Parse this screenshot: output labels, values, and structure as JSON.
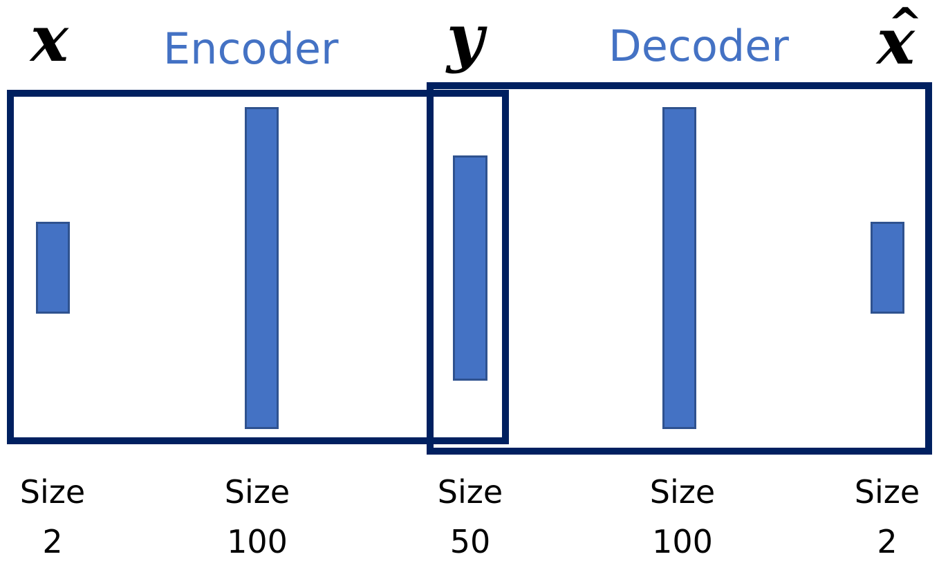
{
  "labels": {
    "input": "x",
    "latent": "y",
    "output": "x",
    "output_hat": "^",
    "encoder": "Encoder",
    "decoder": "Decoder"
  },
  "layers": [
    {
      "size_word": "Size",
      "size_value": "2"
    },
    {
      "size_word": "Size",
      "size_value": "100"
    },
    {
      "size_word": "Size",
      "size_value": "50"
    },
    {
      "size_word": "Size",
      "size_value": "100"
    },
    {
      "size_word": "Size",
      "size_value": "2"
    }
  ],
  "colors": {
    "frame": "#002060",
    "layer_fill": "#4472c4",
    "layer_border": "#2f528f",
    "title_text": "#4472c4"
  }
}
